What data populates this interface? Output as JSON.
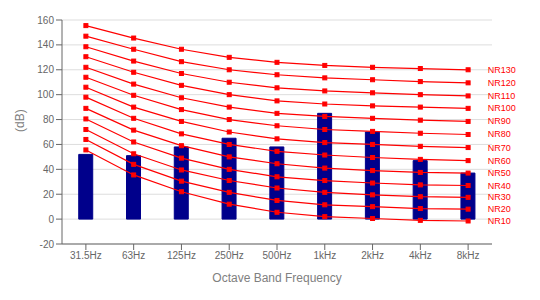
{
  "chart_data": {
    "type": "bar",
    "xlabel": "Octave Band Frequency",
    "ylabel": "(dB)",
    "categories": [
      "31.5Hz",
      "63Hz",
      "125Hz",
      "250Hz",
      "500Hz",
      "1kHz",
      "2kHz",
      "4kHz",
      "8kHz"
    ],
    "values": [
      52,
      51,
      58,
      65,
      58,
      85,
      70,
      47,
      37
    ],
    "color": "#00008B",
    "series": [
      {
        "name": "NR10",
        "type": "line",
        "color": "#FF0000",
        "marker": "square",
        "values": [
          55.6,
          35.5,
          22.0,
          12.0,
          5.5,
          2.0,
          0.5,
          -1.0,
          -1.5
        ]
      },
      {
        "name": "NR20",
        "type": "line",
        "color": "#FF0000",
        "marker": "square",
        "values": [
          64.0,
          44.0,
          30.5,
          21.5,
          15.0,
          11.5,
          10.0,
          8.5,
          8.0
        ]
      },
      {
        "name": "NR30",
        "type": "line",
        "color": "#FF0000",
        "marker": "square",
        "values": [
          72.0,
          52.5,
          39.5,
          31.0,
          25.0,
          21.5,
          19.5,
          18.0,
          17.5
        ]
      },
      {
        "name": "NR40",
        "type": "line",
        "color": "#FF0000",
        "marker": "square",
        "values": [
          80.5,
          62.0,
          49.0,
          40.0,
          34.0,
          31.0,
          29.0,
          27.5,
          27.0
        ]
      },
      {
        "name": "NR50",
        "type": "line",
        "color": "#FF0000",
        "marker": "square",
        "values": [
          89.0,
          71.5,
          59.0,
          50.0,
          44.5,
          41.0,
          39.0,
          37.5,
          37.0
        ]
      },
      {
        "name": "NR60",
        "type": "line",
        "color": "#FF0000",
        "marker": "square",
        "values": [
          98.0,
          81.0,
          68.5,
          60.0,
          54.5,
          51.5,
          49.5,
          48.0,
          47.0
        ]
      },
      {
        "name": "NR70",
        "type": "line",
        "color": "#FF0000",
        "marker": "square",
        "values": [
          106.0,
          90.0,
          78.5,
          70.0,
          64.5,
          61.5,
          60.0,
          58.5,
          57.5
        ]
      },
      {
        "name": "NR80",
        "type": "line",
        "color": "#FF0000",
        "marker": "square",
        "values": [
          114.0,
          99.5,
          88.0,
          80.0,
          75.0,
          72.0,
          70.5,
          69.0,
          68.0
        ]
      },
      {
        "name": "NR90",
        "type": "line",
        "color": "#FF0000",
        "marker": "square",
        "values": [
          122.0,
          108.5,
          97.5,
          90.0,
          85.0,
          82.5,
          81.0,
          79.5,
          78.5
        ]
      },
      {
        "name": "NR100",
        "type": "line",
        "color": "#FF0000",
        "marker": "square",
        "values": [
          130.5,
          118.0,
          107.5,
          100.0,
          95.0,
          92.5,
          91.0,
          90.0,
          89.0
        ]
      },
      {
        "name": "NR110",
        "type": "line",
        "color": "#FF0000",
        "marker": "square",
        "values": [
          138.5,
          127.0,
          117.0,
          110.0,
          105.5,
          103.0,
          101.5,
          100.0,
          99.0
        ]
      },
      {
        "name": "NR120",
        "type": "line",
        "color": "#FF0000",
        "marker": "square",
        "values": [
          147.0,
          136.5,
          126.5,
          120.0,
          116.0,
          113.5,
          112.0,
          110.5,
          109.5
        ]
      },
      {
        "name": "NR130",
        "type": "line",
        "color": "#FF0000",
        "marker": "square",
        "values": [
          155.5,
          145.5,
          136.5,
          130.0,
          126.0,
          123.5,
          122.0,
          121.0,
          120.0
        ]
      }
    ],
    "ylim": [
      -20,
      160
    ],
    "yticks": [
      -20,
      0,
      20,
      40,
      60,
      80,
      100,
      120,
      140,
      160
    ],
    "grid": true
  }
}
